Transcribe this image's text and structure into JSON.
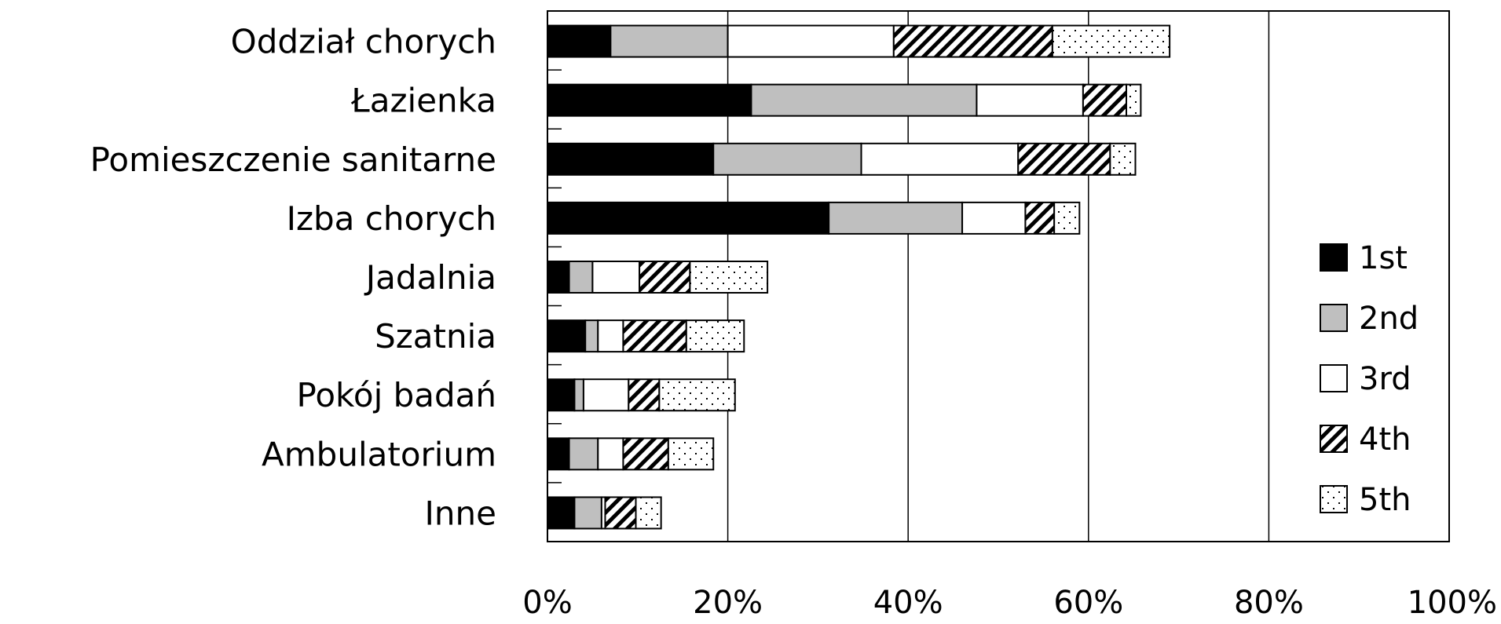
{
  "chart_data": {
    "type": "bar",
    "orientation": "horizontal",
    "stacked": true,
    "categories": [
      "Oddział chorych",
      "Łazienka",
      "Pomieszczenie sanitarne",
      "Izba chorych",
      "Jadalnia",
      "Szatnia",
      "Pokój badań",
      "Ambulatorium",
      "Inne"
    ],
    "series": [
      {
        "name": "1st",
        "pattern": "solid-black",
        "values": [
          3.5,
          11.3,
          9.2,
          15.6,
          1.2,
          2.1,
          1.5,
          1.2,
          1.5
        ]
      },
      {
        "name": "2nd",
        "pattern": "solid-gray",
        "values": [
          6.5,
          12.5,
          8.2,
          7.4,
          1.3,
          0.7,
          0.5,
          1.6,
          1.5
        ]
      },
      {
        "name": "3rd",
        "pattern": "white",
        "values": [
          9.2,
          5.9,
          8.7,
          3.5,
          2.6,
          1.4,
          2.5,
          1.4,
          0.2
        ]
      },
      {
        "name": "4th",
        "pattern": "hatched",
        "values": [
          8.8,
          2.4,
          5.1,
          1.6,
          2.8,
          3.5,
          1.7,
          2.5,
          1.7
        ]
      },
      {
        "name": "5th",
        "pattern": "dotted",
        "values": [
          6.5,
          0.8,
          1.4,
          1.4,
          4.3,
          3.2,
          4.2,
          2.5,
          1.4
        ]
      }
    ],
    "x_ticks": [
      "0%",
      "20%",
      "40%",
      "60%",
      "80%",
      "100%"
    ],
    "xlim": [
      0,
      50
    ],
    "grid": "vertical",
    "legend": "right"
  }
}
